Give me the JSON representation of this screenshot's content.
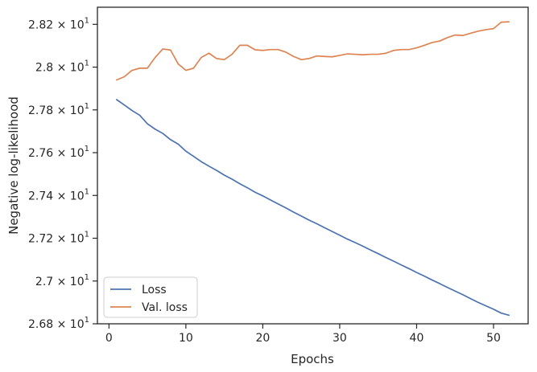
{
  "chart_data": {
    "type": "line",
    "xlabel": "Epochs",
    "ylabel": "Negative log-likelihood",
    "xlim": [
      -1.5,
      54.5
    ],
    "ylim": [
      26.8,
      28.28
    ],
    "xticks": [
      0,
      10,
      20,
      30,
      40,
      50
    ],
    "xtick_labels": [
      "0",
      "10",
      "20",
      "30",
      "40",
      "50"
    ],
    "yticks": [
      26.8,
      27.0,
      27.2,
      27.4,
      27.6,
      27.8,
      28.0,
      28.2
    ],
    "ytick_labels": [
      {
        "mantissa": "2.68",
        "power": "1"
      },
      {
        "mantissa": "2.7",
        "power": "1"
      },
      {
        "mantissa": "2.72",
        "power": "1"
      },
      {
        "mantissa": "2.74",
        "power": "1"
      },
      {
        "mantissa": "2.76",
        "power": "1"
      },
      {
        "mantissa": "2.78",
        "power": "1"
      },
      {
        "mantissa": "2.8",
        "power": "1"
      },
      {
        "mantissa": "2.82",
        "power": "1"
      }
    ],
    "legend_position": "lower-left",
    "x": [
      1,
      2,
      3,
      4,
      5,
      6,
      7,
      8,
      9,
      10,
      11,
      12,
      13,
      14,
      15,
      16,
      17,
      18,
      19,
      20,
      21,
      22,
      23,
      24,
      25,
      26,
      27,
      28,
      29,
      30,
      31,
      32,
      33,
      34,
      35,
      36,
      37,
      38,
      39,
      40,
      41,
      42,
      43,
      44,
      45,
      46,
      47,
      48,
      49,
      50,
      51,
      52
    ],
    "series": [
      {
        "name": "Loss",
        "color": "#4c72b0",
        "values": [
          27.848,
          27.823,
          27.797,
          27.775,
          27.735,
          27.71,
          27.69,
          27.661,
          27.64,
          27.607,
          27.583,
          27.558,
          27.537,
          27.517,
          27.495,
          27.476,
          27.455,
          27.436,
          27.415,
          27.398,
          27.379,
          27.36,
          27.342,
          27.322,
          27.304,
          27.285,
          27.268,
          27.25,
          27.232,
          27.214,
          27.196,
          27.18,
          27.163,
          27.145,
          27.128,
          27.11,
          27.093,
          27.075,
          27.058,
          27.04,
          27.023,
          27.005,
          26.988,
          26.97,
          26.953,
          26.936,
          26.918,
          26.9,
          26.884,
          26.868,
          26.85,
          26.84
        ]
      },
      {
        "name": "Val. loss",
        "color": "#dd8452",
        "values": [
          27.94,
          27.955,
          27.985,
          27.995,
          27.995,
          28.045,
          28.085,
          28.08,
          28.015,
          27.985,
          27.995,
          28.045,
          28.065,
          28.04,
          28.035,
          28.06,
          28.102,
          28.102,
          28.081,
          28.078,
          28.082,
          28.082,
          28.07,
          28.05,
          28.035,
          28.04,
          28.052,
          28.05,
          28.048,
          28.055,
          28.062,
          28.06,
          28.058,
          28.06,
          28.06,
          28.065,
          28.078,
          28.082,
          28.082,
          28.09,
          28.102,
          28.115,
          28.122,
          28.138,
          28.15,
          28.148,
          28.158,
          28.168,
          28.175,
          28.18,
          28.21,
          28.212
        ]
      }
    ]
  }
}
